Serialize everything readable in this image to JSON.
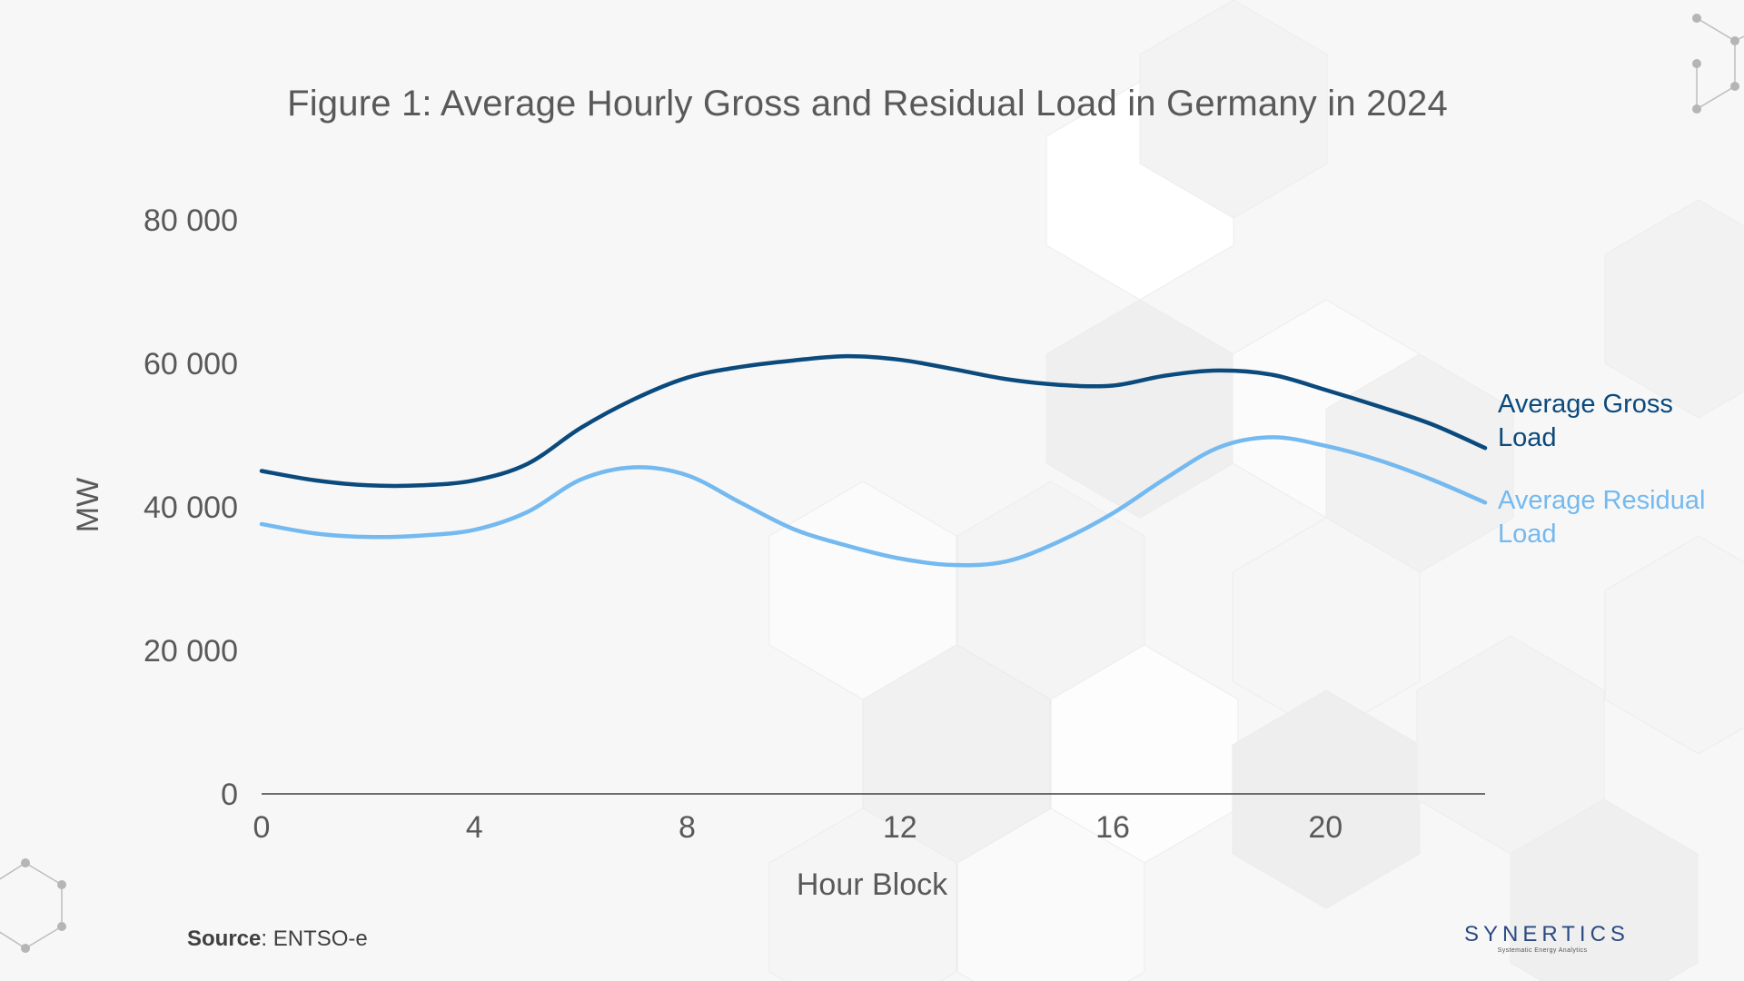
{
  "colors": {
    "gross": "#0b4a7d",
    "residual": "#74b9ef",
    "axis_text": "#595959",
    "axis_line": "#404040"
  },
  "source": {
    "bold": "Source",
    "text": ": ENTSO-e"
  },
  "logo": {
    "name": "SYNERTICS",
    "tagline": "Systematic Energy Analytics"
  },
  "chart_data": {
    "type": "line",
    "title": "Figure 1: Average Hourly Gross and Residual Load in Germany in 2024",
    "xlabel": "Hour Block",
    "ylabel": "MW",
    "xlim": [
      0,
      23
    ],
    "ylim": [
      0,
      80000
    ],
    "xticks": [
      0,
      4,
      8,
      12,
      16,
      20
    ],
    "yticks": [
      0,
      20000,
      40000,
      60000,
      80000
    ],
    "ytick_labels": [
      "0",
      "20 000",
      "40 000",
      "60 000",
      "80 000"
    ],
    "grid": false,
    "legend": "direct labels at line ends (right)",
    "x": [
      0,
      1,
      2,
      3,
      4,
      5,
      6,
      7,
      8,
      9,
      10,
      11,
      12,
      13,
      14,
      15,
      16,
      17,
      18,
      19,
      20,
      21,
      22,
      23
    ],
    "series": [
      {
        "name": "Average Gross Load",
        "label_lines": [
          "Average Gross",
          "Load"
        ],
        "color": "#0b4a7d",
        "values": [
          45000,
          43700,
          43000,
          43000,
          43700,
          46000,
          51000,
          55000,
          58000,
          59500,
          60400,
          61000,
          60500,
          59200,
          57800,
          57000,
          56900,
          58300,
          59000,
          58400,
          56300,
          54000,
          51500,
          48200
        ]
      },
      {
        "name": "Average Residual Load",
        "label_lines": [
          "Average Residual",
          "Load"
        ],
        "color": "#74b9ef",
        "values": [
          37600,
          36300,
          35800,
          36000,
          36800,
          39300,
          43800,
          45500,
          44400,
          40600,
          36900,
          34600,
          32800,
          31900,
          32400,
          35200,
          39100,
          44000,
          48300,
          49700,
          48500,
          46500,
          43800,
          40600
        ]
      }
    ]
  }
}
